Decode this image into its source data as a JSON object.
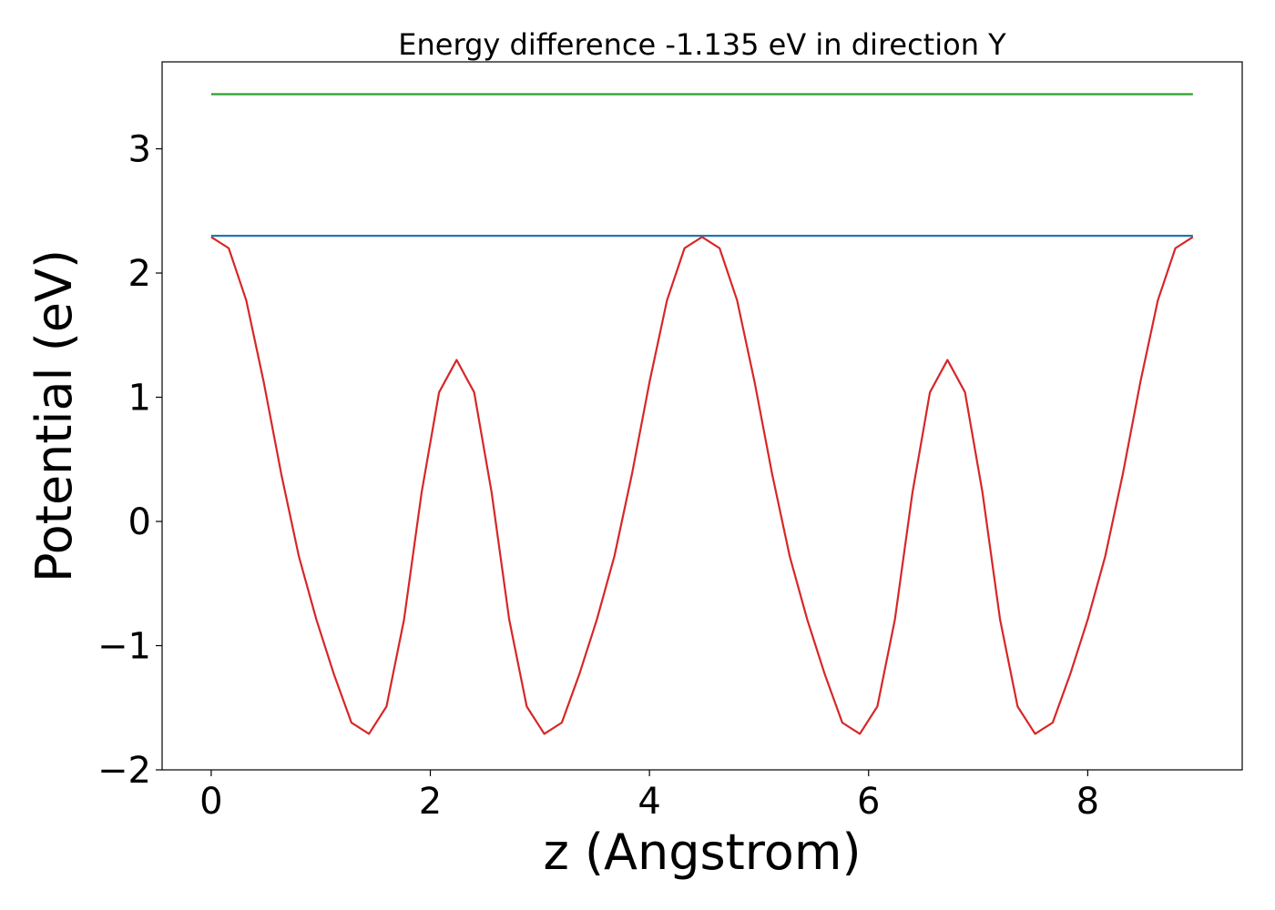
{
  "chart_data": {
    "type": "line",
    "title": "Energy difference -1.135 eV in direction Y",
    "xlabel": "z (Angstrom)",
    "ylabel": "Potential (eV)",
    "series": [
      {
        "color": "#d62728",
        "x": [
          0,
          0.16,
          0.32,
          0.48,
          0.64,
          0.8,
          0.96,
          1.12,
          1.28,
          1.44,
          1.6,
          1.76,
          1.92,
          2.08,
          2.24,
          2.4,
          2.56,
          2.72,
          2.88,
          3.04,
          3.2,
          3.36,
          3.52,
          3.68,
          3.84,
          4,
          4.16,
          4.32,
          4.48,
          4.64,
          4.8,
          4.96,
          5.12,
          5.28,
          5.44,
          5.6,
          5.76,
          5.92,
          6.08,
          6.24,
          6.4,
          6.56,
          6.72,
          6.88,
          7.04,
          7.2,
          7.36,
          7.52,
          7.68,
          7.84,
          8,
          8.16,
          8.32,
          8.48,
          8.64,
          8.8,
          8.96
        ],
        "values": [
          2.29,
          2.2,
          1.78,
          1.12,
          0.38,
          -0.28,
          -0.79,
          -1.23,
          -1.62,
          -1.71,
          -1.49,
          -0.79,
          0.23,
          1.04,
          1.3,
          1.04,
          0.23,
          -0.79,
          -1.49,
          -1.71,
          -1.62,
          -1.23,
          -0.79,
          -0.28,
          0.38,
          1.12,
          1.78,
          2.2,
          2.29,
          2.2,
          1.78,
          1.12,
          0.38,
          -0.28,
          -0.79,
          -1.23,
          -1.62,
          -1.71,
          -1.49,
          -0.79,
          0.23,
          1.04,
          1.3,
          1.04,
          0.23,
          -0.79,
          -1.49,
          -1.71,
          -1.62,
          -1.23,
          -0.79,
          -0.28,
          0.38,
          1.12,
          1.78,
          2.2,
          2.29
        ]
      },
      {
        "color": "#1f77b4",
        "x": [
          0,
          8.96
        ],
        "values": [
          2.3,
          2.3
        ]
      },
      {
        "color": "#2ca02c",
        "x": [
          0,
          8.96
        ],
        "values": [
          3.44,
          3.44
        ]
      }
    ],
    "xlim": [
      -0.448,
      9.41
    ],
    "xticks": [
      0,
      2,
      4,
      6,
      8
    ],
    "ylim": [
      -2.0,
      3.7
    ],
    "yticks": [
      {
        "value": -2,
        "label": "−2"
      },
      {
        "value": -1,
        "label": "−1"
      },
      0,
      1,
      2,
      3
    ]
  }
}
